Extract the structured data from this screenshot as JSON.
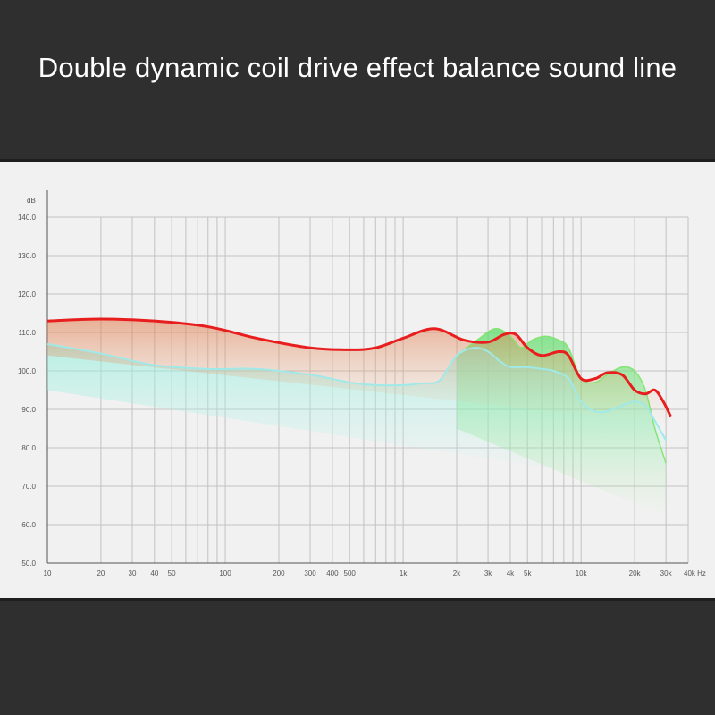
{
  "title": "Double dynamic coil drive effect balance sound line",
  "colors": {
    "background": "#2f2f2f",
    "panel": "#f1f1f1",
    "grid": "#b9b9b9",
    "red": "#e81e1e",
    "cyan": "#9fe9e9",
    "green": "#7ee36a",
    "orange": "#d88a4a"
  },
  "chart_data": {
    "type": "line",
    "title": "Double dynamic coil drive effect balance sound line",
    "x_scale": "log",
    "xlim": [
      10,
      40000
    ],
    "ylim": [
      50,
      140
    ],
    "y_unit": "dB",
    "x_unit": "Hz",
    "y_ticks": [
      "140.0",
      "130.0",
      "120.0",
      "110.0",
      "100.0",
      "90.0",
      "80.0",
      "70.0",
      "60.0",
      "50.0"
    ],
    "x_ticks": [
      {
        "v": 10,
        "label": "10"
      },
      {
        "v": 20,
        "label": "20"
      },
      {
        "v": 30,
        "label": "30"
      },
      {
        "v": 40,
        "label": "40"
      },
      {
        "v": 50,
        "label": "50"
      },
      {
        "v": 100,
        "label": "100"
      },
      {
        "v": 200,
        "label": "200"
      },
      {
        "v": 300,
        "label": "300"
      },
      {
        "v": 400,
        "label": "400"
      },
      {
        "v": 500,
        "label": "500"
      },
      {
        "v": 1000,
        "label": "1k"
      },
      {
        "v": 2000,
        "label": "2k"
      },
      {
        "v": 3000,
        "label": "3k"
      },
      {
        "v": 4000,
        "label": "4k"
      },
      {
        "v": 5000,
        "label": "5k"
      },
      {
        "v": 10000,
        "label": "10k"
      },
      {
        "v": 20000,
        "label": "20k"
      },
      {
        "v": 30000,
        "label": "30k"
      },
      {
        "v": 40000,
        "label": "40k Hz"
      }
    ],
    "grid": true,
    "series": [
      {
        "color": "#e81e1e",
        "points": [
          [
            10,
            113
          ],
          [
            20,
            113.5
          ],
          [
            40,
            113
          ],
          [
            80,
            111.5
          ],
          [
            150,
            108.5
          ],
          [
            300,
            106
          ],
          [
            500,
            105.5
          ],
          [
            700,
            106
          ],
          [
            1000,
            108.5
          ],
          [
            1500,
            111
          ],
          [
            2200,
            108
          ],
          [
            3000,
            107.5
          ],
          [
            3700,
            109.5
          ],
          [
            4300,
            109.5
          ],
          [
            5000,
            106
          ],
          [
            6000,
            104
          ],
          [
            7500,
            105
          ],
          [
            8500,
            104
          ],
          [
            10000,
            98
          ],
          [
            12000,
            98
          ],
          [
            14000,
            99.5
          ],
          [
            17000,
            99
          ],
          [
            20000,
            95
          ],
          [
            23000,
            94
          ],
          [
            26000,
            95
          ],
          [
            29000,
            92
          ],
          [
            32000,
            88
          ]
        ]
      },
      {
        "color": "#9fe9e9",
        "points": [
          [
            10,
            107
          ],
          [
            20,
            104.5
          ],
          [
            40,
            101.5
          ],
          [
            80,
            100.5
          ],
          [
            150,
            100.5
          ],
          [
            300,
            99
          ],
          [
            500,
            97
          ],
          [
            700,
            96.3
          ],
          [
            1000,
            96.3
          ],
          [
            1300,
            96.8
          ],
          [
            1600,
            97.5
          ],
          [
            2000,
            104
          ],
          [
            2500,
            106
          ],
          [
            3000,
            105
          ],
          [
            3500,
            102.5
          ],
          [
            4000,
            101
          ],
          [
            5000,
            101
          ],
          [
            6000,
            100.5
          ],
          [
            7000,
            100
          ],
          [
            8500,
            98
          ],
          [
            10000,
            92
          ],
          [
            12000,
            89.5
          ],
          [
            14000,
            89.5
          ],
          [
            17000,
            91
          ],
          [
            20000,
            92
          ],
          [
            23000,
            91
          ],
          [
            26000,
            87
          ],
          [
            30000,
            82
          ]
        ]
      },
      {
        "color": "#7ee36a",
        "points": [
          [
            2000,
            104
          ],
          [
            2600,
            108
          ],
          [
            3300,
            111
          ],
          [
            4000,
            109
          ],
          [
            4600,
            106
          ],
          [
            5300,
            108
          ],
          [
            6300,
            109
          ],
          [
            7500,
            108
          ],
          [
            8500,
            106
          ],
          [
            10000,
            98
          ],
          [
            12000,
            97
          ],
          [
            14000,
            99
          ],
          [
            17000,
            101
          ],
          [
            20000,
            100
          ],
          [
            23000,
            95
          ],
          [
            26000,
            85
          ],
          [
            30000,
            76
          ]
        ]
      }
    ]
  }
}
